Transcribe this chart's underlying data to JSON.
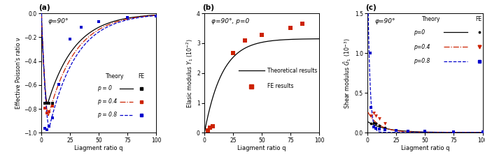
{
  "fig_width": 6.93,
  "fig_height": 2.38,
  "dpi": 100,
  "panel_a": {
    "title": "(a)",
    "annotation": "φ=90°",
    "xlabel": "Liagment ratio q",
    "ylabel": "Effective Poisson's ratio ν",
    "ylim": [
      -1.0,
      0.0
    ],
    "xlim": [
      0,
      100
    ],
    "xticks": [
      0,
      25,
      50,
      75,
      100
    ],
    "yticks": [
      -1.0,
      -0.8,
      -0.6,
      -0.4,
      -0.2,
      0.0
    ],
    "fe_p0_q": [
      3,
      5,
      7,
      10
    ],
    "fe_p0_v": [
      -0.755,
      -0.755,
      -0.755,
      -0.755
    ],
    "fe_p04_q": [
      3,
      5,
      7,
      10
    ],
    "fe_p04_v": [
      -0.795,
      -0.835,
      -0.825,
      -0.775
    ],
    "fe_p08_q": [
      3,
      5,
      7,
      10,
      15,
      25,
      35,
      50,
      75,
      100
    ],
    "fe_p08_v": [
      -0.965,
      -0.975,
      -0.945,
      -0.875,
      -0.595,
      -0.215,
      -0.115,
      -0.07,
      -0.035,
      -0.025
    ]
  },
  "panel_b": {
    "title": "(b)",
    "annotation": "φ=90°, p=0",
    "xlabel": "Liagment ratio q",
    "ylim": [
      0,
      4.0
    ],
    "xlim": [
      0,
      100
    ],
    "xticks": [
      0,
      25,
      50,
      75,
      100
    ],
    "yticks": [
      0.0,
      1.0,
      2.0,
      3.0,
      4.0
    ],
    "fe_q": [
      3,
      5,
      7,
      25,
      35,
      50,
      75,
      85
    ],
    "fe_Y": [
      0.08,
      0.18,
      0.22,
      2.68,
      3.08,
      3.28,
      3.52,
      3.64
    ]
  },
  "panel_c": {
    "title": "(c)",
    "annotation": "φ=90°",
    "xlabel": "Liagment ratio q",
    "ylim": [
      0,
      1.5
    ],
    "xlim": [
      0,
      100
    ],
    "xticks": [
      0,
      25,
      50,
      75,
      100
    ],
    "yticks": [
      0.0,
      0.5,
      1.0,
      1.5
    ],
    "fe_p0_q": [
      3,
      5,
      7,
      10,
      15
    ],
    "fe_p0_G": [
      0.115,
      0.125,
      0.115,
      0.095,
      0.065
    ],
    "fe_p04_q": [
      3,
      5,
      7,
      10,
      15
    ],
    "fe_p04_G": [
      0.215,
      0.245,
      0.215,
      0.175,
      0.115
    ],
    "fe_p08_q": [
      2,
      3,
      5,
      7,
      10,
      15,
      25,
      35,
      50,
      75,
      100
    ],
    "fe_p08_G": [
      1.0,
      0.32,
      0.075,
      0.055,
      0.048,
      0.038,
      0.028,
      0.022,
      0.018,
      0.012,
      0.008
    ]
  },
  "colors": {
    "p0": "#000000",
    "p04": "#cc2200",
    "p08": "#0000cc"
  }
}
